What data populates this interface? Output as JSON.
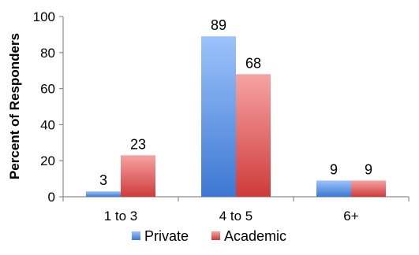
{
  "chart_data": {
    "type": "bar",
    "categories": [
      "1 to 3",
      "4 to 5",
      "6+"
    ],
    "series": [
      {
        "name": "Private",
        "values": [
          3,
          89,
          9
        ],
        "color": "#4f86d9"
      },
      {
        "name": "Academic",
        "values": [
          23,
          68,
          9
        ],
        "color": "#d9494a"
      }
    ],
    "title": "",
    "xlabel": "",
    "ylabel": "Percent of Responders",
    "ylim": [
      0,
      100
    ],
    "yticks": [
      0,
      20,
      40,
      60,
      80,
      100
    ],
    "grid": false,
    "legend_position": "bottom",
    "data_labels": true
  }
}
